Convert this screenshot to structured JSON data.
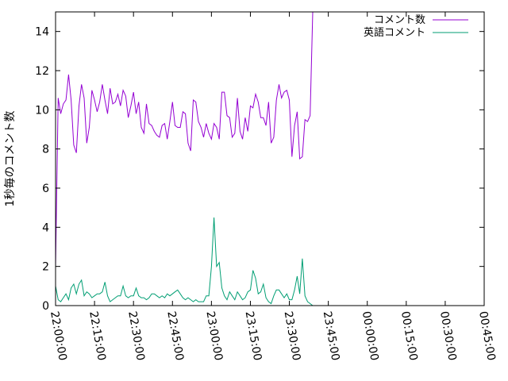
{
  "chart_data": {
    "type": "line",
    "title": "",
    "xlabel": "",
    "ylabel": "1秒毎のコメント数",
    "ylim": [
      0,
      15
    ],
    "y_ticks": [
      0,
      2,
      4,
      6,
      8,
      10,
      12,
      14
    ],
    "x_range": [
      "22:00:00",
      "00:45:00"
    ],
    "x_ticks": [
      "22:00:00",
      "22:15:00",
      "22:30:00",
      "22:45:00",
      "23:00:00",
      "23:15:00",
      "23:30:00",
      "23:45:00",
      "00:00:00",
      "00:15:00",
      "00:30:00",
      "00:45:00"
    ],
    "legend_position": "top-right",
    "grid": false,
    "series": [
      {
        "name": "コメント数",
        "color": "#9400d3",
        "points": [
          [
            "22:00:00",
            2.0
          ],
          [
            "22:01:00",
            10.6
          ],
          [
            "22:02:00",
            9.8
          ],
          [
            "22:03:00",
            10.3
          ],
          [
            "22:04:00",
            10.5
          ],
          [
            "22:05:00",
            11.8
          ],
          [
            "22:06:00",
            10.5
          ],
          [
            "22:07:00",
            8.2
          ],
          [
            "22:08:00",
            7.8
          ],
          [
            "22:09:00",
            10.2
          ],
          [
            "22:10:00",
            11.3
          ],
          [
            "22:11:00",
            10.6
          ],
          [
            "22:12:00",
            8.3
          ],
          [
            "22:13:00",
            9.1
          ],
          [
            "22:14:00",
            11.0
          ],
          [
            "22:15:00",
            10.5
          ],
          [
            "22:16:00",
            9.9
          ],
          [
            "22:17:00",
            10.4
          ],
          [
            "22:18:00",
            11.3
          ],
          [
            "22:19:00",
            10.5
          ],
          [
            "22:20:00",
            9.8
          ],
          [
            "22:21:00",
            11.1
          ],
          [
            "22:22:00",
            10.3
          ],
          [
            "22:23:00",
            10.4
          ],
          [
            "22:24:00",
            10.8
          ],
          [
            "22:25:00",
            10.2
          ],
          [
            "22:26:00",
            11.0
          ],
          [
            "22:27:00",
            10.7
          ],
          [
            "22:28:00",
            9.6
          ],
          [
            "22:29:00",
            10.2
          ],
          [
            "22:30:00",
            10.9
          ],
          [
            "22:31:00",
            9.8
          ],
          [
            "22:32:00",
            10.4
          ],
          [
            "22:33:00",
            9.1
          ],
          [
            "22:34:00",
            8.8
          ],
          [
            "22:35:00",
            10.3
          ],
          [
            "22:36:00",
            9.3
          ],
          [
            "22:37:00",
            9.2
          ],
          [
            "22:38:00",
            8.9
          ],
          [
            "22:39:00",
            8.7
          ],
          [
            "22:40:00",
            8.6
          ],
          [
            "22:41:00",
            9.2
          ],
          [
            "22:42:00",
            9.3
          ],
          [
            "22:43:00",
            8.5
          ],
          [
            "22:44:00",
            9.4
          ],
          [
            "22:45:00",
            10.4
          ],
          [
            "22:46:00",
            9.2
          ],
          [
            "22:47:00",
            9.1
          ],
          [
            "22:48:00",
            9.1
          ],
          [
            "22:49:00",
            9.9
          ],
          [
            "22:50:00",
            9.8
          ],
          [
            "22:51:00",
            8.3
          ],
          [
            "22:52:00",
            7.9
          ],
          [
            "22:53:00",
            10.5
          ],
          [
            "22:54:00",
            10.4
          ],
          [
            "22:55:00",
            9.4
          ],
          [
            "22:56:00",
            9.1
          ],
          [
            "22:57:00",
            8.6
          ],
          [
            "22:58:00",
            9.3
          ],
          [
            "22:59:00",
            8.8
          ],
          [
            "23:00:00",
            8.5
          ],
          [
            "23:01:00",
            9.3
          ],
          [
            "23:02:00",
            9.1
          ],
          [
            "23:03:00",
            8.5
          ],
          [
            "23:04:00",
            10.9
          ],
          [
            "23:05:00",
            10.9
          ],
          [
            "23:06:00",
            9.7
          ],
          [
            "23:07:00",
            9.6
          ],
          [
            "23:08:00",
            8.6
          ],
          [
            "23:09:00",
            8.8
          ],
          [
            "23:10:00",
            10.6
          ],
          [
            "23:11:00",
            8.9
          ],
          [
            "23:12:00",
            8.5
          ],
          [
            "23:13:00",
            9.6
          ],
          [
            "23:14:00",
            8.9
          ],
          [
            "23:15:00",
            10.2
          ],
          [
            "23:16:00",
            10.1
          ],
          [
            "23:17:00",
            10.8
          ],
          [
            "23:18:00",
            10.4
          ],
          [
            "23:19:00",
            9.6
          ],
          [
            "23:20:00",
            9.6
          ],
          [
            "23:21:00",
            9.2
          ],
          [
            "23:22:00",
            10.4
          ],
          [
            "23:23:00",
            8.3
          ],
          [
            "23:24:00",
            8.6
          ],
          [
            "23:25:00",
            10.5
          ],
          [
            "23:26:00",
            11.3
          ],
          [
            "23:27:00",
            10.6
          ],
          [
            "23:28:00",
            10.9
          ],
          [
            "23:29:00",
            11.0
          ],
          [
            "23:30:00",
            10.5
          ],
          [
            "23:31:00",
            7.6
          ],
          [
            "23:32:00",
            9.2
          ],
          [
            "23:33:00",
            9.9
          ],
          [
            "23:34:00",
            7.5
          ],
          [
            "23:35:00",
            7.6
          ],
          [
            "23:36:00",
            9.5
          ],
          [
            "23:37:00",
            9.4
          ],
          [
            "23:38:00",
            9.7
          ],
          [
            "23:39:00",
            15.0
          ]
        ]
      },
      {
        "name": "英語コメント",
        "color": "#009e73",
        "points": [
          [
            "22:00:00",
            1.0
          ],
          [
            "22:01:00",
            0.3
          ],
          [
            "22:02:00",
            0.2
          ],
          [
            "22:03:00",
            0.4
          ],
          [
            "22:04:00",
            0.6
          ],
          [
            "22:05:00",
            0.3
          ],
          [
            "22:06:00",
            0.9
          ],
          [
            "22:07:00",
            1.1
          ],
          [
            "22:08:00",
            0.6
          ],
          [
            "22:09:00",
            1.1
          ],
          [
            "22:10:00",
            1.3
          ],
          [
            "22:11:00",
            0.5
          ],
          [
            "22:12:00",
            0.7
          ],
          [
            "22:13:00",
            0.6
          ],
          [
            "22:14:00",
            0.4
          ],
          [
            "22:15:00",
            0.5
          ],
          [
            "22:16:00",
            0.6
          ],
          [
            "22:17:00",
            0.6
          ],
          [
            "22:18:00",
            0.7
          ],
          [
            "22:19:00",
            1.2
          ],
          [
            "22:20:00",
            0.5
          ],
          [
            "22:21:00",
            0.2
          ],
          [
            "22:22:00",
            0.3
          ],
          [
            "22:23:00",
            0.4
          ],
          [
            "22:24:00",
            0.5
          ],
          [
            "22:25:00",
            0.5
          ],
          [
            "22:26:00",
            1.0
          ],
          [
            "22:27:00",
            0.5
          ],
          [
            "22:28:00",
            0.4
          ],
          [
            "22:29:00",
            0.5
          ],
          [
            "22:30:00",
            0.5
          ],
          [
            "22:31:00",
            0.9
          ],
          [
            "22:32:00",
            0.5
          ],
          [
            "22:33:00",
            0.4
          ],
          [
            "22:34:00",
            0.4
          ],
          [
            "22:35:00",
            0.3
          ],
          [
            "22:36:00",
            0.4
          ],
          [
            "22:37:00",
            0.6
          ],
          [
            "22:38:00",
            0.6
          ],
          [
            "22:39:00",
            0.5
          ],
          [
            "22:40:00",
            0.4
          ],
          [
            "22:41:00",
            0.5
          ],
          [
            "22:42:00",
            0.4
          ],
          [
            "22:43:00",
            0.6
          ],
          [
            "22:44:00",
            0.5
          ],
          [
            "22:45:00",
            0.6
          ],
          [
            "22:46:00",
            0.7
          ],
          [
            "22:47:00",
            0.8
          ],
          [
            "22:48:00",
            0.6
          ],
          [
            "22:49:00",
            0.4
          ],
          [
            "22:50:00",
            0.3
          ],
          [
            "22:51:00",
            0.4
          ],
          [
            "22:52:00",
            0.3
          ],
          [
            "22:53:00",
            0.2
          ],
          [
            "22:54:00",
            0.3
          ],
          [
            "22:55:00",
            0.2
          ],
          [
            "22:56:00",
            0.2
          ],
          [
            "22:57:00",
            0.2
          ],
          [
            "22:58:00",
            0.5
          ],
          [
            "22:59:00",
            0.5
          ],
          [
            "23:00:00",
            2.0
          ],
          [
            "23:01:00",
            4.5
          ],
          [
            "23:02:00",
            2.0
          ],
          [
            "23:03:00",
            2.2
          ],
          [
            "23:04:00",
            0.9
          ],
          [
            "23:05:00",
            0.5
          ],
          [
            "23:06:00",
            0.3
          ],
          [
            "23:07:00",
            0.7
          ],
          [
            "23:08:00",
            0.5
          ],
          [
            "23:09:00",
            0.3
          ],
          [
            "23:10:00",
            0.7
          ],
          [
            "23:11:00",
            0.5
          ],
          [
            "23:12:00",
            0.3
          ],
          [
            "23:13:00",
            0.4
          ],
          [
            "23:14:00",
            0.7
          ],
          [
            "23:15:00",
            0.8
          ],
          [
            "23:16:00",
            1.8
          ],
          [
            "23:17:00",
            1.4
          ],
          [
            "23:18:00",
            0.6
          ],
          [
            "23:19:00",
            0.7
          ],
          [
            "23:20:00",
            1.1
          ],
          [
            "23:21:00",
            0.4
          ],
          [
            "23:22:00",
            0.2
          ],
          [
            "23:23:00",
            0.1
          ],
          [
            "23:24:00",
            0.5
          ],
          [
            "23:25:00",
            0.8
          ],
          [
            "23:26:00",
            0.8
          ],
          [
            "23:27:00",
            0.6
          ],
          [
            "23:28:00",
            0.4
          ],
          [
            "23:29:00",
            0.6
          ],
          [
            "23:30:00",
            0.3
          ],
          [
            "23:31:00",
            0.3
          ],
          [
            "23:32:00",
            0.8
          ],
          [
            "23:33:00",
            1.5
          ],
          [
            "23:34:00",
            0.6
          ],
          [
            "23:35:00",
            2.4
          ],
          [
            "23:36:00",
            0.5
          ],
          [
            "23:37:00",
            0.2
          ],
          [
            "23:38:00",
            0.1
          ],
          [
            "23:39:00",
            0.0
          ]
        ]
      }
    ]
  }
}
